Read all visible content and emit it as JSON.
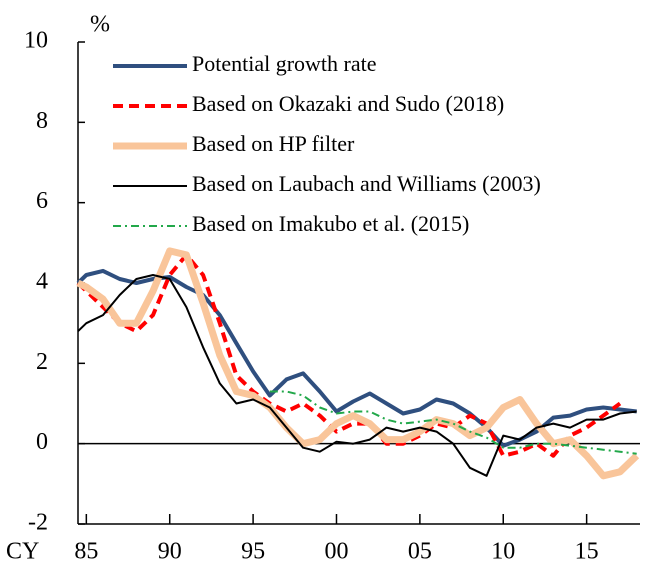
{
  "chart_data": {
    "type": "line",
    "y_unit_label": "%",
    "x_axis_label": "CY",
    "x": [
      1984.5,
      1985,
      1986,
      1987,
      1988,
      1989,
      1990,
      1991,
      1992,
      1993,
      1994,
      1995,
      1996,
      1997,
      1998,
      1999,
      2000,
      2001,
      2002,
      2003,
      2004,
      2005,
      2006,
      2007,
      2008,
      2009,
      2010,
      2011,
      2012,
      2013,
      2014,
      2015,
      2016,
      2017,
      2018
    ],
    "series": [
      {
        "name": "Potential growth rate",
        "color": "#2f4f7f",
        "width": 4,
        "dash": "none",
        "values": [
          4.0,
          4.2,
          4.3,
          4.1,
          4.0,
          4.1,
          4.15,
          3.9,
          3.7,
          3.2,
          2.5,
          1.8,
          1.2,
          1.6,
          1.75,
          1.3,
          0.8,
          1.05,
          1.25,
          1.0,
          0.75,
          0.85,
          1.1,
          1.0,
          0.75,
          0.4,
          -0.05,
          0.1,
          0.3,
          0.65,
          0.7,
          0.85,
          0.9,
          0.85,
          0.8
        ]
      },
      {
        "name": "Based on Okazaki and Sudo (2018)",
        "color": "#ff0000",
        "width": 4,
        "dash": "10 6",
        "values": [
          4.0,
          3.8,
          3.4,
          3.0,
          2.8,
          3.2,
          4.2,
          4.7,
          4.2,
          3.0,
          1.7,
          1.3,
          1.0,
          0.8,
          1.0,
          0.7,
          0.3,
          0.5,
          0.5,
          0.0,
          0.0,
          0.2,
          0.5,
          0.4,
          0.7,
          0.5,
          -0.3,
          -0.2,
          0.0,
          -0.3,
          0.2,
          0.4,
          0.7,
          1.0,
          null
        ]
      },
      {
        "name": "Based on HP filter",
        "color": "#f9c59a",
        "width": 7,
        "dash": "none",
        "values": [
          4.0,
          3.9,
          3.6,
          3.0,
          3.0,
          3.8,
          4.8,
          4.7,
          3.5,
          2.2,
          1.3,
          1.2,
          0.9,
          0.4,
          0.0,
          0.1,
          0.5,
          0.7,
          0.5,
          0.1,
          0.1,
          0.3,
          0.6,
          0.5,
          0.2,
          0.4,
          0.9,
          1.1,
          0.5,
          0.0,
          0.1,
          -0.3,
          -0.8,
          -0.7,
          -0.3
        ]
      },
      {
        "name": "Based on Laubach and Williams (2003)",
        "color": "#000000",
        "width": 2,
        "dash": "none",
        "values": [
          2.8,
          3.0,
          3.2,
          3.7,
          4.1,
          4.2,
          4.1,
          3.4,
          2.4,
          1.5,
          1.0,
          1.1,
          0.9,
          0.4,
          -0.1,
          -0.2,
          0.05,
          0.0,
          0.1,
          0.4,
          0.3,
          0.4,
          0.3,
          0.0,
          -0.6,
          -0.8,
          0.2,
          0.1,
          0.4,
          0.5,
          0.4,
          0.6,
          0.6,
          0.75,
          0.8
        ]
      },
      {
        "name": "Based on Imakubo et al. (2015)",
        "color": "#22a84a",
        "width": 2,
        "dash": "8 4 2 4",
        "values": [
          null,
          null,
          null,
          null,
          null,
          null,
          null,
          null,
          null,
          null,
          null,
          null,
          1.3,
          1.3,
          1.2,
          0.9,
          0.75,
          0.8,
          0.8,
          0.6,
          0.5,
          0.55,
          0.6,
          0.5,
          0.3,
          0.15,
          -0.1,
          -0.1,
          0.0,
          0.0,
          -0.05,
          -0.1,
          -0.15,
          -0.2,
          -0.25
        ]
      }
    ],
    "xlim": [
      1984.5,
      2018.2
    ],
    "xticks": [
      {
        "value": 1985,
        "label": "85"
      },
      {
        "value": 1990,
        "label": "90"
      },
      {
        "value": 1995,
        "label": "95"
      },
      {
        "value": 2000,
        "label": "00"
      },
      {
        "value": 2005,
        "label": "05"
      },
      {
        "value": 2010,
        "label": "10"
      },
      {
        "value": 2015,
        "label": "15"
      }
    ],
    "ylim": [
      -2,
      10
    ],
    "yticks": [
      -2,
      0,
      2,
      4,
      6,
      8,
      10
    ],
    "zero_line": true
  }
}
